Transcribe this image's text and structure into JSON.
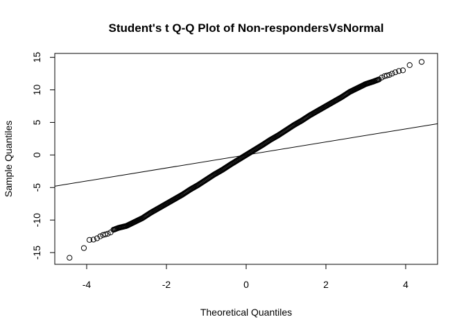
{
  "chart_data": {
    "type": "scatter",
    "title": "Student's t Q-Q Plot of Non-respondersVsNormal",
    "xlabel": "Theoretical Quantiles",
    "ylabel": "Sample Quantiles",
    "xlim": [
      -4.8,
      4.8
    ],
    "ylim": [
      -16.8,
      15.6
    ],
    "xticks": [
      -4,
      -2,
      0,
      2,
      4
    ],
    "yticks": [
      -15,
      -10,
      -5,
      0,
      5,
      10,
      15
    ],
    "grid": false,
    "legend": "none",
    "point_style": "open-circle",
    "series": [
      {
        "points": [
          [
            -4.43,
            -15.8
          ],
          [
            -4.07,
            -14.3
          ],
          [
            -3.93,
            -13.05
          ],
          [
            -3.83,
            -13.0
          ],
          [
            -3.74,
            -12.8
          ],
          [
            -3.66,
            -12.5
          ],
          [
            -3.59,
            -12.3
          ],
          [
            -3.53,
            -12.2
          ],
          [
            -3.47,
            -12.1
          ],
          [
            -3.4,
            -11.9
          ],
          [
            -3.33,
            -11.5
          ],
          [
            -3.2,
            -11.2
          ],
          [
            -3.0,
            -10.9
          ],
          [
            -2.8,
            -10.3
          ],
          [
            -2.6,
            -9.7
          ],
          [
            -2.4,
            -8.9
          ],
          [
            -2.2,
            -8.2
          ],
          [
            -2.0,
            -7.5
          ],
          [
            -1.8,
            -6.8
          ],
          [
            -1.6,
            -6.1
          ],
          [
            -1.4,
            -5.3
          ],
          [
            -1.2,
            -4.6
          ],
          [
            -1.0,
            -3.8
          ],
          [
            -0.8,
            -3.0
          ],
          [
            -0.6,
            -2.3
          ],
          [
            -0.4,
            -1.5
          ],
          [
            -0.2,
            -0.75
          ],
          [
            0.0,
            0.0
          ],
          [
            0.2,
            0.75
          ],
          [
            0.4,
            1.5
          ],
          [
            0.6,
            2.3
          ],
          [
            0.8,
            3.0
          ],
          [
            1.0,
            3.8
          ],
          [
            1.2,
            4.6
          ],
          [
            1.4,
            5.3
          ],
          [
            1.6,
            6.1
          ],
          [
            1.8,
            6.8
          ],
          [
            2.0,
            7.5
          ],
          [
            2.2,
            8.2
          ],
          [
            2.4,
            8.9
          ],
          [
            2.6,
            9.7
          ],
          [
            2.8,
            10.3
          ],
          [
            3.0,
            10.9
          ],
          [
            3.2,
            11.3
          ],
          [
            3.33,
            11.6
          ],
          [
            3.4,
            11.9
          ],
          [
            3.47,
            12.1
          ],
          [
            3.53,
            12.2
          ],
          [
            3.59,
            12.3
          ],
          [
            3.66,
            12.5
          ],
          [
            3.74,
            12.7
          ],
          [
            3.83,
            12.9
          ],
          [
            3.93,
            13.0
          ],
          [
            4.1,
            13.8
          ],
          [
            4.4,
            14.3
          ]
        ]
      }
    ],
    "reference_line": {
      "slope": 1.0,
      "intercept": 0.0,
      "color": "#000000"
    }
  }
}
